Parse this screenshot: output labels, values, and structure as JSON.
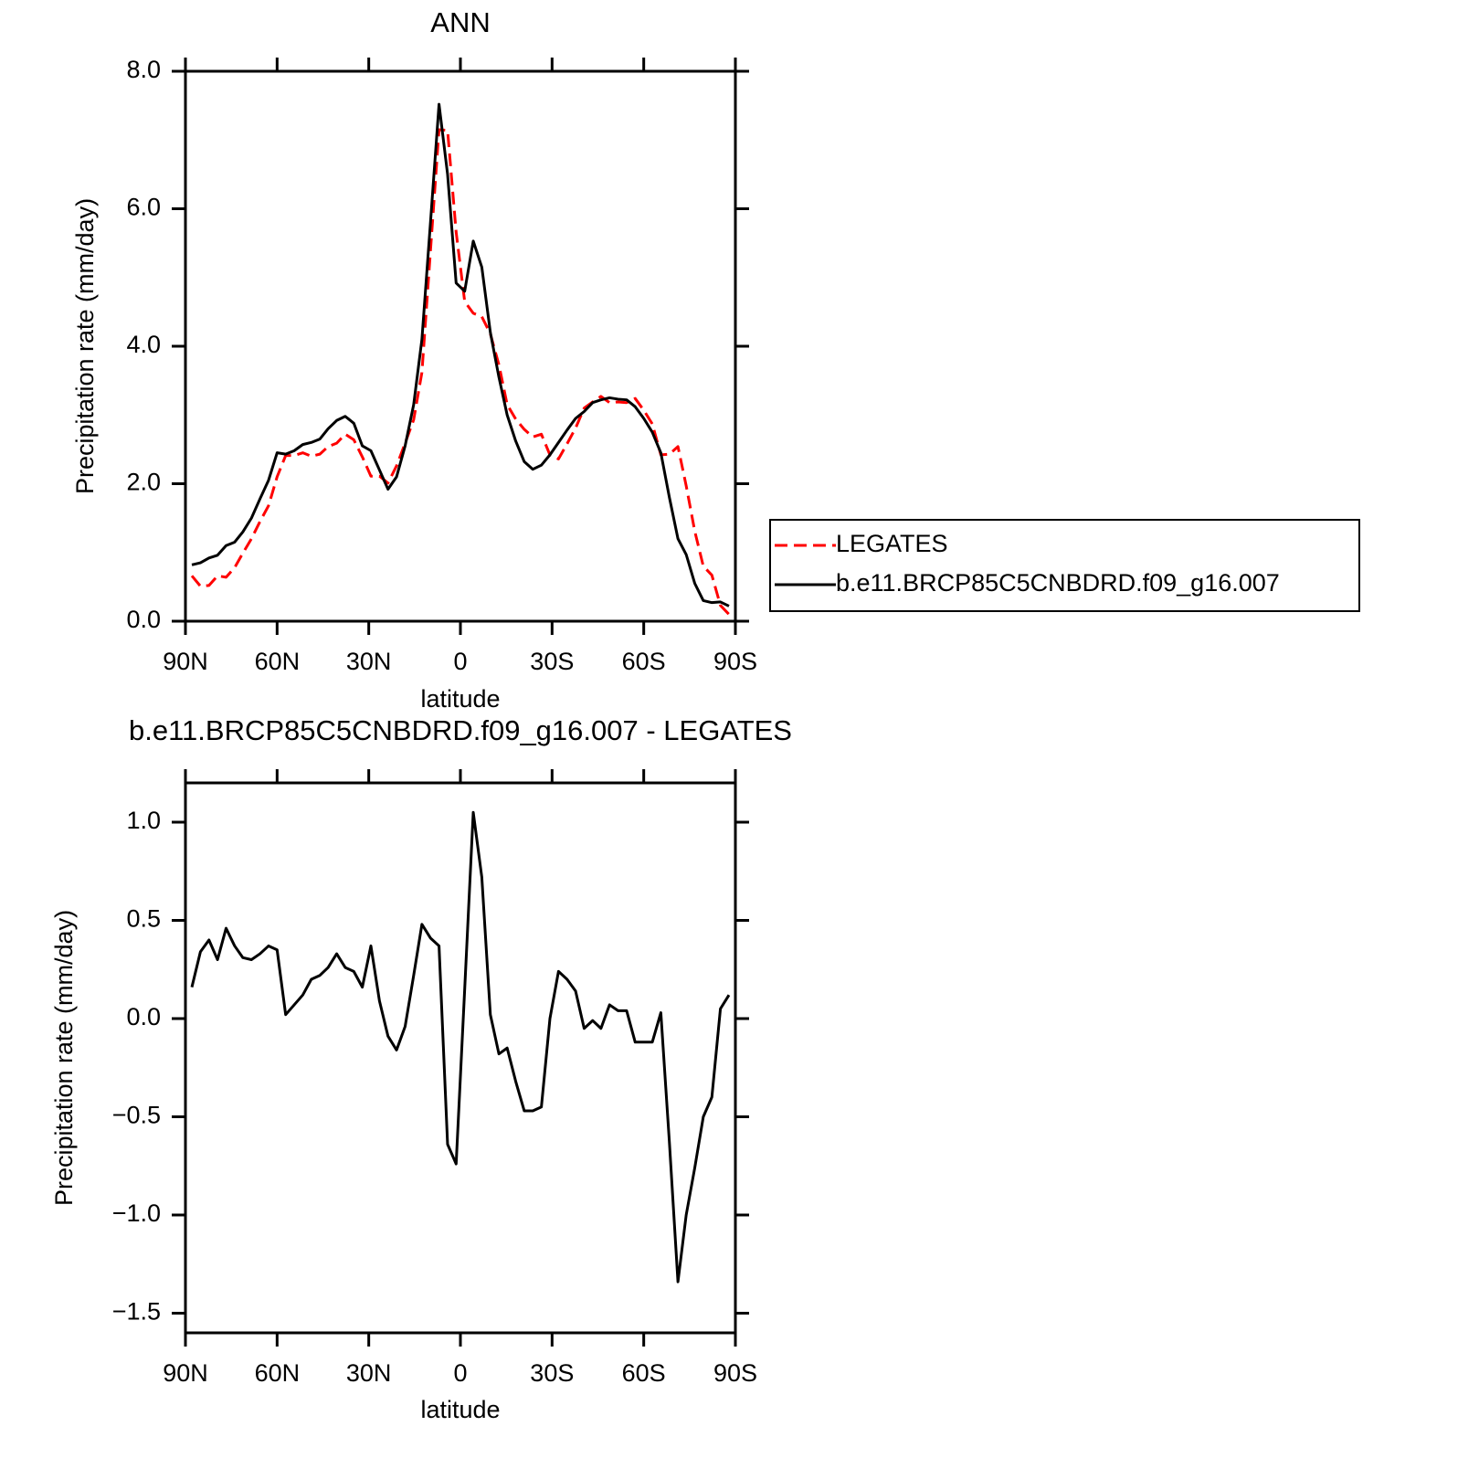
{
  "chart_data": [
    {
      "type": "line",
      "title": "ANN",
      "x_label": "latitude",
      "y_label": "Precipitation rate (mm/day)",
      "x": [
        87.9,
        85.1,
        82.3,
        79.5,
        76.7,
        73.9,
        71.2,
        68.4,
        65.6,
        62.8,
        60.0,
        57.2,
        54.4,
        51.6,
        48.8,
        46.0,
        43.3,
        40.5,
        37.7,
        34.9,
        32.1,
        29.3,
        26.5,
        23.7,
        20.9,
        18.1,
        15.3,
        12.6,
        9.8,
        7.0,
        4.2,
        1.4,
        -1.4,
        -4.2,
        -7.0,
        -9.8,
        -12.6,
        -15.3,
        -18.1,
        -20.9,
        -23.7,
        -26.5,
        -29.3,
        -32.1,
        -34.9,
        -37.7,
        -40.5,
        -43.3,
        -46.0,
        -48.8,
        -51.6,
        -54.4,
        -57.2,
        -60.0,
        -62.8,
        -65.6,
        -68.4,
        -71.2,
        -73.9,
        -76.7,
        -79.5,
        -82.3,
        -85.1,
        -87.9
      ],
      "xlim": [
        90,
        -90
      ],
      "xticks": [
        {
          "value": 90,
          "label": "90N"
        },
        {
          "value": 60,
          "label": "60N"
        },
        {
          "value": 30,
          "label": "30N"
        },
        0,
        {
          "value": -30,
          "label": "30S"
        },
        {
          "value": -60,
          "label": "60S"
        },
        {
          "value": -90,
          "label": "90S"
        }
      ],
      "ylim": [
        0,
        8
      ],
      "yticks": [
        {
          "value": 0,
          "label": "0.0"
        },
        {
          "value": 2,
          "label": "2.0"
        },
        {
          "value": 4,
          "label": "4.0"
        },
        {
          "value": 6,
          "label": "6.0"
        },
        {
          "value": 8,
          "label": "8.0"
        }
      ],
      "legend": "right",
      "series": [
        {
          "name": "LEGATES",
          "color": "#ff0000",
          "dash": "dashed",
          "values": [
            0.66,
            0.51,
            0.52,
            0.66,
            0.64,
            0.78,
            0.99,
            1.2,
            1.45,
            1.68,
            2.1,
            2.41,
            2.41,
            2.45,
            2.4,
            2.43,
            2.54,
            2.59,
            2.72,
            2.64,
            2.39,
            2.11,
            2.11,
            2.01,
            2.26,
            2.59,
            2.93,
            3.62,
            5.39,
            7.15,
            7.14,
            5.66,
            4.65,
            4.48,
            4.43,
            4.18,
            3.73,
            3.15,
            2.94,
            2.79,
            2.68,
            2.72,
            2.42,
            2.36,
            2.58,
            2.81,
            3.1,
            3.19,
            3.27,
            3.18,
            3.19,
            3.18,
            3.24,
            3.07,
            2.87,
            2.42,
            2.43,
            2.54,
            1.97,
            1.31,
            0.8,
            0.67,
            0.23,
            0.1
          ]
        },
        {
          "name": "b.e11.BRCP85C5CNBDRD.f09_g16.007",
          "color": "#000000",
          "values": [
            0.82,
            0.85,
            0.92,
            0.96,
            1.1,
            1.15,
            1.3,
            1.5,
            1.78,
            2.05,
            2.45,
            2.43,
            2.48,
            2.57,
            2.6,
            2.65,
            2.8,
            2.92,
            2.98,
            2.88,
            2.55,
            2.48,
            2.2,
            1.92,
            2.1,
            2.55,
            3.15,
            4.1,
            5.8,
            7.52,
            6.5,
            4.92,
            4.8,
            5.53,
            5.15,
            4.2,
            3.55,
            3.0,
            2.62,
            2.32,
            2.21,
            2.27,
            2.42,
            2.6,
            2.78,
            2.95,
            3.05,
            3.18,
            3.22,
            3.25,
            3.23,
            3.22,
            3.12,
            2.95,
            2.75,
            2.45,
            1.8,
            1.2,
            0.97,
            0.55,
            0.3,
            0.27,
            0.28,
            0.22
          ]
        }
      ]
    },
    {
      "type": "line",
      "title": "b.e11.BRCP85C5CNBDRD.f09_g16.007 - LEGATES",
      "x_label": "latitude",
      "y_label": "Precipitation rate (mm/day)",
      "x": [
        87.9,
        85.1,
        82.3,
        79.5,
        76.7,
        73.9,
        71.2,
        68.4,
        65.6,
        62.8,
        60.0,
        57.2,
        54.4,
        51.6,
        48.8,
        46.0,
        43.3,
        40.5,
        37.7,
        34.9,
        32.1,
        29.3,
        26.5,
        23.7,
        20.9,
        18.1,
        15.3,
        12.6,
        9.8,
        7.0,
        4.2,
        1.4,
        -1.4,
        -4.2,
        -7.0,
        -9.8,
        -12.6,
        -15.3,
        -18.1,
        -20.9,
        -23.7,
        -26.5,
        -29.3,
        -32.1,
        -34.9,
        -37.7,
        -40.5,
        -43.3,
        -46.0,
        -48.8,
        -51.6,
        -54.4,
        -57.2,
        -60.0,
        -62.8,
        -65.6,
        -68.4,
        -71.2,
        -73.9,
        -76.7,
        -79.5,
        -82.3,
        -85.1,
        -87.9
      ],
      "xlim": [
        90,
        -90
      ],
      "xticks": [
        {
          "value": 90,
          "label": "90N"
        },
        {
          "value": 60,
          "label": "60N"
        },
        {
          "value": 30,
          "label": "30N"
        },
        0,
        {
          "value": -30,
          "label": "30S"
        },
        {
          "value": -60,
          "label": "60S"
        },
        {
          "value": -90,
          "label": "90S"
        }
      ],
      "ylim": [
        -1.6,
        1.2
      ],
      "yticks": [
        {
          "value": -1.5,
          "label": "−1.5"
        },
        {
          "value": -1.0,
          "label": "−1.0"
        },
        {
          "value": -0.5,
          "label": "−0.5"
        },
        {
          "value": 0,
          "label": "0.0"
        },
        {
          "value": 0.5,
          "label": "0.5"
        },
        {
          "value": 1.0,
          "label": "1.0"
        }
      ],
      "series": [
        {
          "color": "#000000",
          "values": [
            0.16,
            0.34,
            0.4,
            0.3,
            0.46,
            0.37,
            0.31,
            0.3,
            0.33,
            0.37,
            0.35,
            0.02,
            0.07,
            0.12,
            0.2,
            0.22,
            0.26,
            0.33,
            0.26,
            0.24,
            0.16,
            0.37,
            0.09,
            -0.09,
            -0.16,
            -0.04,
            0.22,
            0.48,
            0.41,
            0.37,
            -0.64,
            -0.74,
            0.15,
            1.05,
            0.72,
            0.02,
            -0.18,
            -0.15,
            -0.32,
            -0.47,
            -0.47,
            -0.45,
            0.0,
            0.24,
            0.2,
            0.14,
            -0.05,
            -0.01,
            -0.05,
            0.07,
            0.04,
            0.04,
            -0.12,
            -0.12,
            -0.12,
            0.03,
            -0.63,
            -1.34,
            -1.0,
            -0.76,
            -0.5,
            -0.4,
            0.05,
            0.12
          ]
        }
      ]
    }
  ]
}
